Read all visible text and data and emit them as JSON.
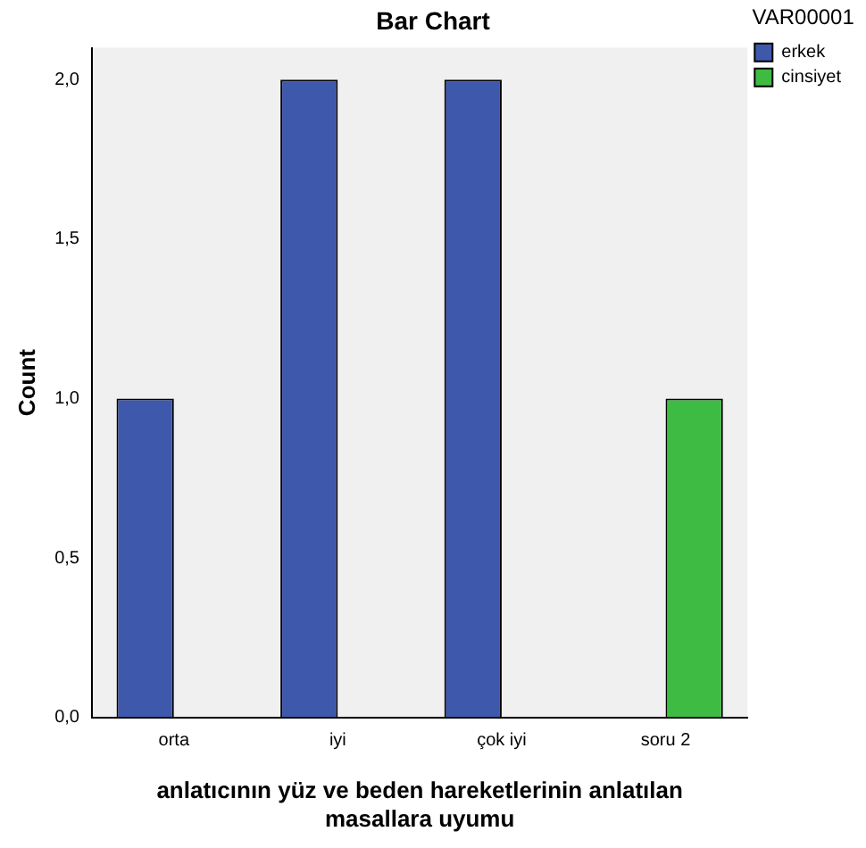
{
  "chart_data": {
    "type": "bar",
    "title": "Bar Chart",
    "xlabel": "anlatıcının yüz ve beden hareketlerinin anlatılan masallara uyumu",
    "ylabel": "Count",
    "legend_title": "VAR00001",
    "categories": [
      "orta",
      "iyi",
      "çok iyi",
      "soru 2"
    ],
    "series": [
      {
        "name": "erkek",
        "color": "#3e58ac",
        "values": [
          1,
          2,
          2,
          null
        ]
      },
      {
        "name": "cinsiyet",
        "color": "#3dbb43",
        "values": [
          null,
          null,
          null,
          1
        ]
      }
    ],
    "ylim": [
      0,
      2.1
    ],
    "yticks": [
      {
        "value": 0,
        "label": "0,0"
      },
      {
        "value": 0.5,
        "label": "0,5"
      },
      {
        "value": 1,
        "label": "1,0"
      },
      {
        "value": 1.5,
        "label": "1,5"
      },
      {
        "value": 2,
        "label": "2,0"
      }
    ],
    "grid": false,
    "legend": "top right"
  }
}
